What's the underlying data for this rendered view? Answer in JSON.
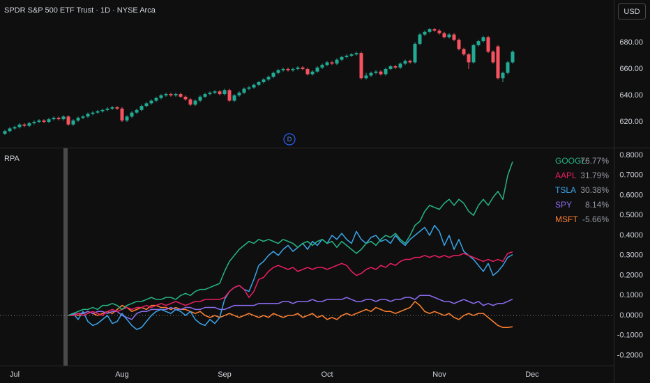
{
  "chart_data": [
    {
      "type": "candlestick",
      "title": "SPDR S&P 500 ETF Trust · 1D · NYSE Arca",
      "currency": "USD",
      "event_marker": "D",
      "up_color": "#22ab94",
      "down_color": "#f7525f",
      "open": [
        611,
        613,
        615,
        616,
        618,
        617,
        619,
        620,
        621,
        620,
        622,
        623,
        622,
        624,
        618,
        621,
        623,
        624,
        626,
        627,
        628,
        629,
        630,
        631,
        630,
        621,
        624,
        627,
        629,
        632,
        634,
        636,
        638,
        640,
        641,
        640,
        641,
        639,
        637,
        633,
        636,
        639,
        641,
        642,
        643,
        641,
        644,
        636,
        640,
        642,
        645,
        646,
        648,
        650,
        652,
        654,
        657,
        659,
        660,
        659,
        660,
        661,
        660,
        656,
        658,
        661,
        663,
        665,
        664,
        667,
        669,
        670,
        671,
        672,
        653,
        655,
        657,
        658,
        656,
        660,
        662,
        661,
        664,
        666,
        665,
        679,
        686,
        688,
        690,
        689,
        687,
        684,
        686,
        682,
        675,
        671,
        665,
        678,
        681,
        684,
        673,
        677,
        653,
        657,
        665,
        null,
        null,
        null,
        null
      ],
      "high": [
        614,
        616,
        617,
        619,
        619,
        620,
        621,
        622,
        622,
        623,
        624,
        624,
        625,
        625,
        622,
        624,
        625,
        627,
        628,
        629,
        630,
        631,
        632,
        632,
        631,
        625,
        628,
        630,
        633,
        635,
        637,
        639,
        641,
        642,
        642,
        642,
        642,
        640,
        638,
        637,
        640,
        642,
        643,
        644,
        644,
        645,
        645,
        641,
        643,
        646,
        647,
        649,
        651,
        653,
        655,
        658,
        660,
        661,
        661,
        661,
        662,
        662,
        661,
        659,
        662,
        664,
        666,
        666,
        668,
        670,
        671,
        672,
        673,
        673,
        657,
        658,
        659,
        659,
        661,
        663,
        663,
        665,
        667,
        667,
        680,
        687,
        689,
        691,
        691,
        690,
        688,
        687,
        687,
        683,
        676,
        672,
        679,
        682,
        685,
        685,
        674,
        678,
        658,
        666,
        674,
        null,
        null,
        null,
        null
      ],
      "low": [
        610,
        612,
        614,
        615,
        616,
        616,
        618,
        619,
        619,
        619,
        621,
        621,
        621,
        617,
        617,
        620,
        622,
        623,
        625,
        626,
        627,
        628,
        629,
        629,
        620,
        620,
        623,
        626,
        628,
        631,
        633,
        635,
        637,
        639,
        639,
        639,
        638,
        636,
        632,
        632,
        635,
        638,
        640,
        641,
        640,
        640,
        635,
        635,
        639,
        641,
        644,
        645,
        647,
        649,
        651,
        653,
        656,
        658,
        658,
        658,
        659,
        659,
        655,
        655,
        657,
        660,
        662,
        663,
        663,
        666,
        668,
        669,
        670,
        652,
        652,
        654,
        656,
        655,
        655,
        659,
        660,
        660,
        663,
        664,
        664,
        678,
        685,
        687,
        688,
        686,
        683,
        683,
        681,
        674,
        670,
        660,
        664,
        677,
        680,
        672,
        664,
        652,
        650,
        656,
        664,
        null,
        null,
        null,
        null
      ],
      "close": [
        613,
        615,
        616,
        618,
        617,
        619,
        620,
        621,
        620,
        622,
        623,
        622,
        624,
        618,
        621,
        623,
        624,
        626,
        627,
        628,
        629,
        630,
        631,
        630,
        621,
        624,
        627,
        629,
        632,
        634,
        636,
        638,
        640,
        641,
        640,
        641,
        639,
        637,
        633,
        636,
        639,
        641,
        642,
        643,
        641,
        644,
        636,
        640,
        642,
        645,
        646,
        648,
        650,
        652,
        654,
        657,
        659,
        660,
        659,
        660,
        661,
        660,
        656,
        658,
        661,
        663,
        665,
        664,
        667,
        669,
        670,
        671,
        672,
        653,
        655,
        657,
        658,
        656,
        660,
        662,
        661,
        664,
        666,
        665,
        679,
        686,
        688,
        690,
        689,
        687,
        684,
        686,
        682,
        675,
        671,
        665,
        678,
        681,
        684,
        673,
        665,
        653,
        657,
        665,
        673,
        null,
        null,
        null,
        null
      ],
      "ylim": [
        600.5,
        712.1
      ],
      "yticks": [
        {
          "value": 620,
          "label": "620.00"
        },
        {
          "value": 640,
          "label": "640.00"
        },
        {
          "value": 660,
          "label": "660.00"
        },
        {
          "value": 680,
          "label": "680.00"
        }
      ]
    },
    {
      "type": "line",
      "title": "RPA",
      "categories": [
        null,
        null,
        "Jul",
        null,
        null,
        null,
        null,
        null,
        null,
        null,
        null,
        null,
        null,
        null,
        null,
        null,
        null,
        null,
        null,
        null,
        null,
        null,
        null,
        null,
        "Aug",
        null,
        null,
        null,
        null,
        null,
        null,
        null,
        null,
        null,
        null,
        null,
        null,
        null,
        null,
        null,
        null,
        null,
        null,
        null,
        null,
        "Sep",
        null,
        null,
        null,
        null,
        null,
        null,
        null,
        null,
        null,
        null,
        null,
        null,
        null,
        null,
        null,
        null,
        null,
        null,
        null,
        null,
        "Oct",
        null,
        null,
        null,
        null,
        null,
        null,
        null,
        null,
        null,
        null,
        null,
        null,
        null,
        null,
        null,
        null,
        null,
        null,
        null,
        null,
        null,
        null,
        "Nov",
        null,
        null,
        null,
        null,
        null,
        null,
        null,
        null,
        null,
        null,
        null,
        null,
        null,
        null,
        null,
        null,
        null,
        null,
        "Dec"
      ],
      "series": [
        {
          "name": "GOOGL",
          "color": "#26b383",
          "last_label": "76.77%",
          "values": [
            null,
            null,
            null,
            null,
            null,
            null,
            null,
            null,
            null,
            null,
            null,
            null,
            null,
            0,
            0.01,
            0.02,
            0.03,
            0.03,
            0.04,
            0.03,
            0.05,
            0.05,
            0.06,
            0.05,
            0.03,
            0.05,
            0.06,
            0.07,
            0.07,
            0.08,
            0.09,
            0.08,
            0.08,
            0.09,
            0.09,
            0.08,
            0.1,
            0.11,
            0.1,
            0.12,
            0.13,
            0.13,
            0.14,
            0.15,
            0.16,
            0.22,
            0.27,
            0.3,
            0.33,
            0.35,
            0.37,
            0.36,
            0.38,
            0.37,
            0.38,
            0.37,
            0.36,
            0.38,
            0.37,
            0.36,
            0.34,
            0.36,
            0.37,
            0.35,
            0.37,
            0.38,
            0.36,
            0.37,
            0.34,
            0.37,
            0.35,
            0.33,
            0.31,
            0.33,
            0.36,
            0.37,
            0.35,
            0.38,
            0.4,
            0.39,
            0.41,
            0.38,
            0.36,
            0.4,
            0.45,
            0.47,
            0.52,
            0.55,
            0.54,
            0.53,
            0.56,
            0.58,
            0.55,
            0.58,
            0.56,
            0.52,
            0.5,
            0.55,
            0.58,
            0.55,
            0.59,
            0.62,
            0.58,
            0.7,
            0.7677,
            null,
            null,
            null,
            null
          ]
        },
        {
          "name": "AAPL",
          "color": "#e91e63",
          "last_label": "31.79%",
          "values": [
            null,
            null,
            null,
            null,
            null,
            null,
            null,
            null,
            null,
            null,
            null,
            null,
            null,
            0,
            0,
            0.01,
            0,
            0.01,
            0.02,
            0.01,
            0,
            0.02,
            0.03,
            0.02,
            0.03,
            0.04,
            0.03,
            0.04,
            0.04,
            0.05,
            0.04,
            0.05,
            0.06,
            0.05,
            0.06,
            0.07,
            0.06,
            0.05,
            0.06,
            0.07,
            0.07,
            0.08,
            0.08,
            0.08,
            0.08,
            0.09,
            0.12,
            0.14,
            0.15,
            0.13,
            0.09,
            0.12,
            0.18,
            0.19,
            0.22,
            0.24,
            0.25,
            0.24,
            0.23,
            0.24,
            0.22,
            0.23,
            0.24,
            0.23,
            0.24,
            0.24,
            0.23,
            0.24,
            0.25,
            0.26,
            0.25,
            0.22,
            0.2,
            0.21,
            0.23,
            0.24,
            0.23,
            0.25,
            0.24,
            0.26,
            0.25,
            0.27,
            0.28,
            0.28,
            0.29,
            0.29,
            0.3,
            0.29,
            0.3,
            0.29,
            0.3,
            0.29,
            0.3,
            0.3,
            0.31,
            0.3,
            0.29,
            0.28,
            0.27,
            0.28,
            0.27,
            0.28,
            0.27,
            0.31,
            0.3179,
            null,
            null,
            null,
            null
          ]
        },
        {
          "name": "TSLA",
          "color": "#3aa3e8",
          "last_label": "30.38%",
          "values": [
            null,
            null,
            null,
            null,
            null,
            null,
            null,
            null,
            null,
            null,
            null,
            null,
            null,
            0,
            0.01,
            -0.02,
            0.02,
            -0.03,
            -0.05,
            -0.04,
            -0.02,
            0,
            -0.04,
            -0.03,
            0.01,
            -0.02,
            -0.05,
            -0.07,
            -0.06,
            -0.03,
            0,
            0.02,
            0.03,
            0.02,
            0.01,
            0.03,
            0.02,
            0,
            0.02,
            -0.02,
            -0.04,
            -0.05,
            -0.02,
            -0.04,
            -0.01,
            0.08,
            0.12,
            0.14,
            0.15,
            0.13,
            0.12,
            0.18,
            0.25,
            0.27,
            0.3,
            0.32,
            0.3,
            0.33,
            0.35,
            0.32,
            0.34,
            0.36,
            0.33,
            0.37,
            0.35,
            0.38,
            0.36,
            0.4,
            0.38,
            0.41,
            0.38,
            0.36,
            0.42,
            0.38,
            0.36,
            0.39,
            0.4,
            0.37,
            0.38,
            0.36,
            0.4,
            0.37,
            0.35,
            0.38,
            0.4,
            0.42,
            0.44,
            0.4,
            0.45,
            0.42,
            0.35,
            0.4,
            0.33,
            0.38,
            0.32,
            0.3,
            0.28,
            0.25,
            0.22,
            0.26,
            0.2,
            0.22,
            0.25,
            0.29,
            0.3038,
            null,
            null,
            null,
            null
          ]
        },
        {
          "name": "SPY",
          "color": "#8c6cf0",
          "last_label": "8.14%",
          "values": [
            null,
            null,
            null,
            null,
            null,
            null,
            null,
            null,
            null,
            null,
            null,
            null,
            null,
            0,
            0.005,
            0.01,
            0.01,
            0.02,
            0.01,
            0.02,
            0.02,
            0.01,
            0.02,
            0.02,
            0,
            -0.01,
            -0.02,
            0.01,
            0.02,
            0.02,
            0.03,
            0.03,
            0.03,
            0.03,
            0.04,
            0.03,
            0.03,
            0.04,
            0.04,
            0.03,
            0.03,
            0.04,
            0.04,
            0.04,
            0.03,
            0.03,
            0.04,
            0.05,
            0.05,
            0.05,
            0.05,
            0.05,
            0.06,
            0.06,
            0.06,
            0.06,
            0.06,
            0.07,
            0.07,
            0.06,
            0.07,
            0.07,
            0.07,
            0.08,
            0.07,
            0.07,
            0.08,
            0.08,
            0.08,
            0.08,
            0.09,
            0.08,
            0.07,
            0.07,
            0.08,
            0.08,
            0.07,
            0.08,
            0.08,
            0.07,
            0.08,
            0.08,
            0.09,
            0.09,
            0.08,
            0.1,
            0.1,
            0.1,
            0.09,
            0.08,
            0.07,
            0.07,
            0.06,
            0.07,
            0.08,
            0.07,
            0.06,
            0.07,
            0.05,
            0.06,
            0.05,
            0.06,
            0.06,
            0.07,
            0.0814,
            null,
            null,
            null,
            null
          ]
        },
        {
          "name": "MSFT",
          "color": "#ff8030",
          "last_label": "-5.66%",
          "values": [
            null,
            null,
            null,
            null,
            null,
            null,
            null,
            null,
            null,
            null,
            null,
            null,
            null,
            0,
            0.01,
            0,
            0.01,
            0.02,
            0.01,
            0,
            0.01,
            0.02,
            0.01,
            0.03,
            0.05,
            0.04,
            0.02,
            0.03,
            0.04,
            0.03,
            0.05,
            0.05,
            0.04,
            0.04,
            0.03,
            0.04,
            0.03,
            0.03,
            0.02,
            0.01,
            0.02,
            0,
            -0.01,
            0,
            -0.01,
            0,
            0.01,
            0,
            -0.01,
            0,
            0.01,
            0,
            -0.01,
            0,
            -0.01,
            0.01,
            0,
            -0.01,
            0,
            0,
            0.01,
            -0.01,
            0,
            0.01,
            -0.01,
            0,
            -0.02,
            -0.01,
            -0.02,
            0,
            0.01,
            0,
            0.01,
            0.02,
            0.03,
            0.02,
            0.04,
            0.03,
            0.02,
            0.02,
            0.01,
            0.02,
            0.03,
            0.04,
            0.07,
            0.05,
            0.02,
            0.01,
            0.02,
            0.01,
            0,
            0.01,
            -0.01,
            -0.02,
            0,
            0.01,
            0,
            0.01,
            0.01,
            -0.01,
            -0.03,
            -0.05,
            -0.06,
            -0.06,
            -0.0566,
            null,
            null,
            null,
            null
          ]
        }
      ],
      "ylim": [
        -0.2504,
        0.8348
      ],
      "yticks": [
        {
          "value": 0.8,
          "label": "0.8000"
        },
        {
          "value": 0.7,
          "label": "0.7000"
        },
        {
          "value": 0.6,
          "label": "0.6000"
        },
        {
          "value": 0.5,
          "label": "0.5000"
        },
        {
          "value": 0.4,
          "label": "0.4000"
        },
        {
          "value": 0.3,
          "label": "0.3000"
        },
        {
          "value": 0.2,
          "label": "0.2000"
        },
        {
          "value": 0.1,
          "label": "0.1000"
        },
        {
          "value": 0,
          "label": "0.0000"
        },
        {
          "value": -0.1,
          "label": "-0.1000"
        },
        {
          "value": -0.2,
          "label": "-0.2000"
        }
      ],
      "baseline": true,
      "grid": false
    }
  ]
}
